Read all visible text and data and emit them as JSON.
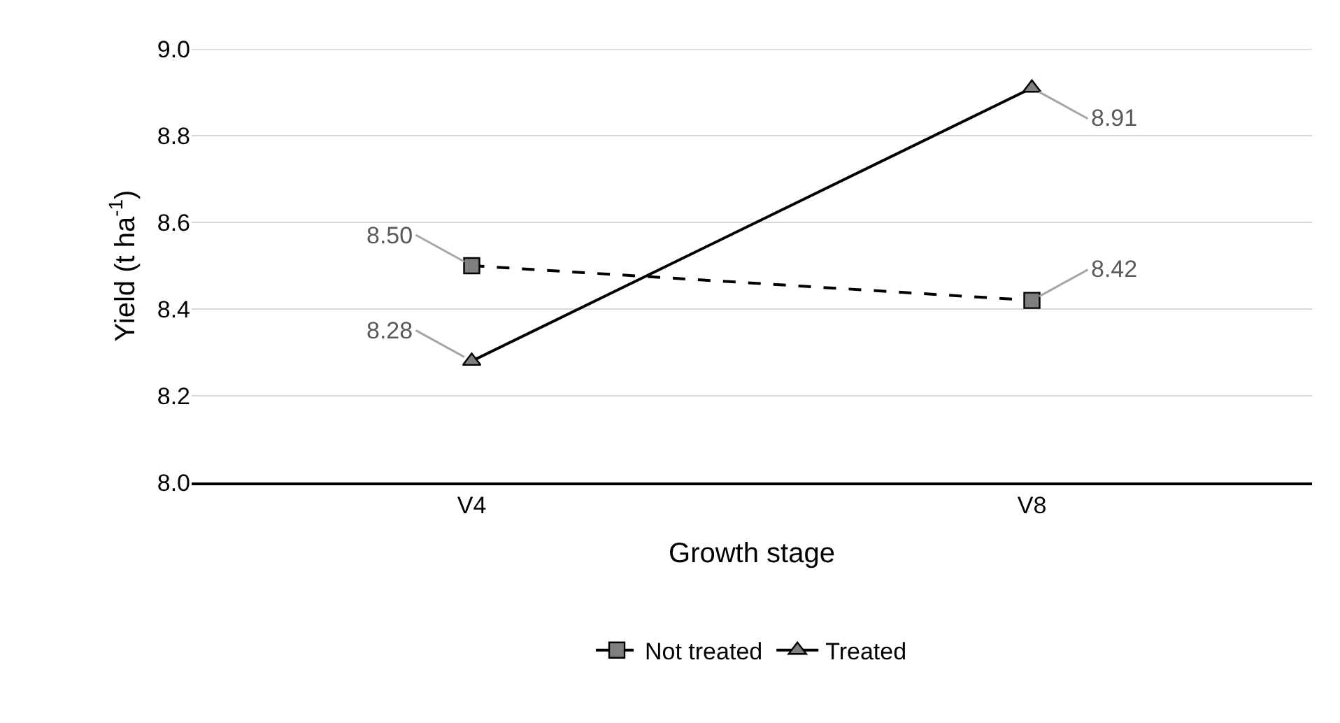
{
  "chart_data": {
    "type": "line",
    "xlabel": "Growth stage",
    "ylabel": "Yield (t ha$^{-1}$)",
    "categories": [
      "V4",
      "V8"
    ],
    "series": [
      {
        "name": "Not treated",
        "color": "#000000",
        "values": [
          8.5,
          8.42
        ],
        "value_labels": [
          "8.50",
          "8.42"
        ],
        "marker": "square",
        "line_style": "dashed"
      },
      {
        "name": "Treated",
        "color": "#000000",
        "values": [
          8.28,
          8.91
        ],
        "value_labels": [
          "8.28",
          "8.91"
        ],
        "marker": "triangle",
        "line_style": "solid"
      }
    ],
    "ylim": [
      8.0,
      9.0
    ],
    "yticks": [
      "8.0",
      "8.2",
      "8.4",
      "8.6",
      "8.8",
      "9.0"
    ],
    "grid": "y",
    "legend": "bottom"
  }
}
